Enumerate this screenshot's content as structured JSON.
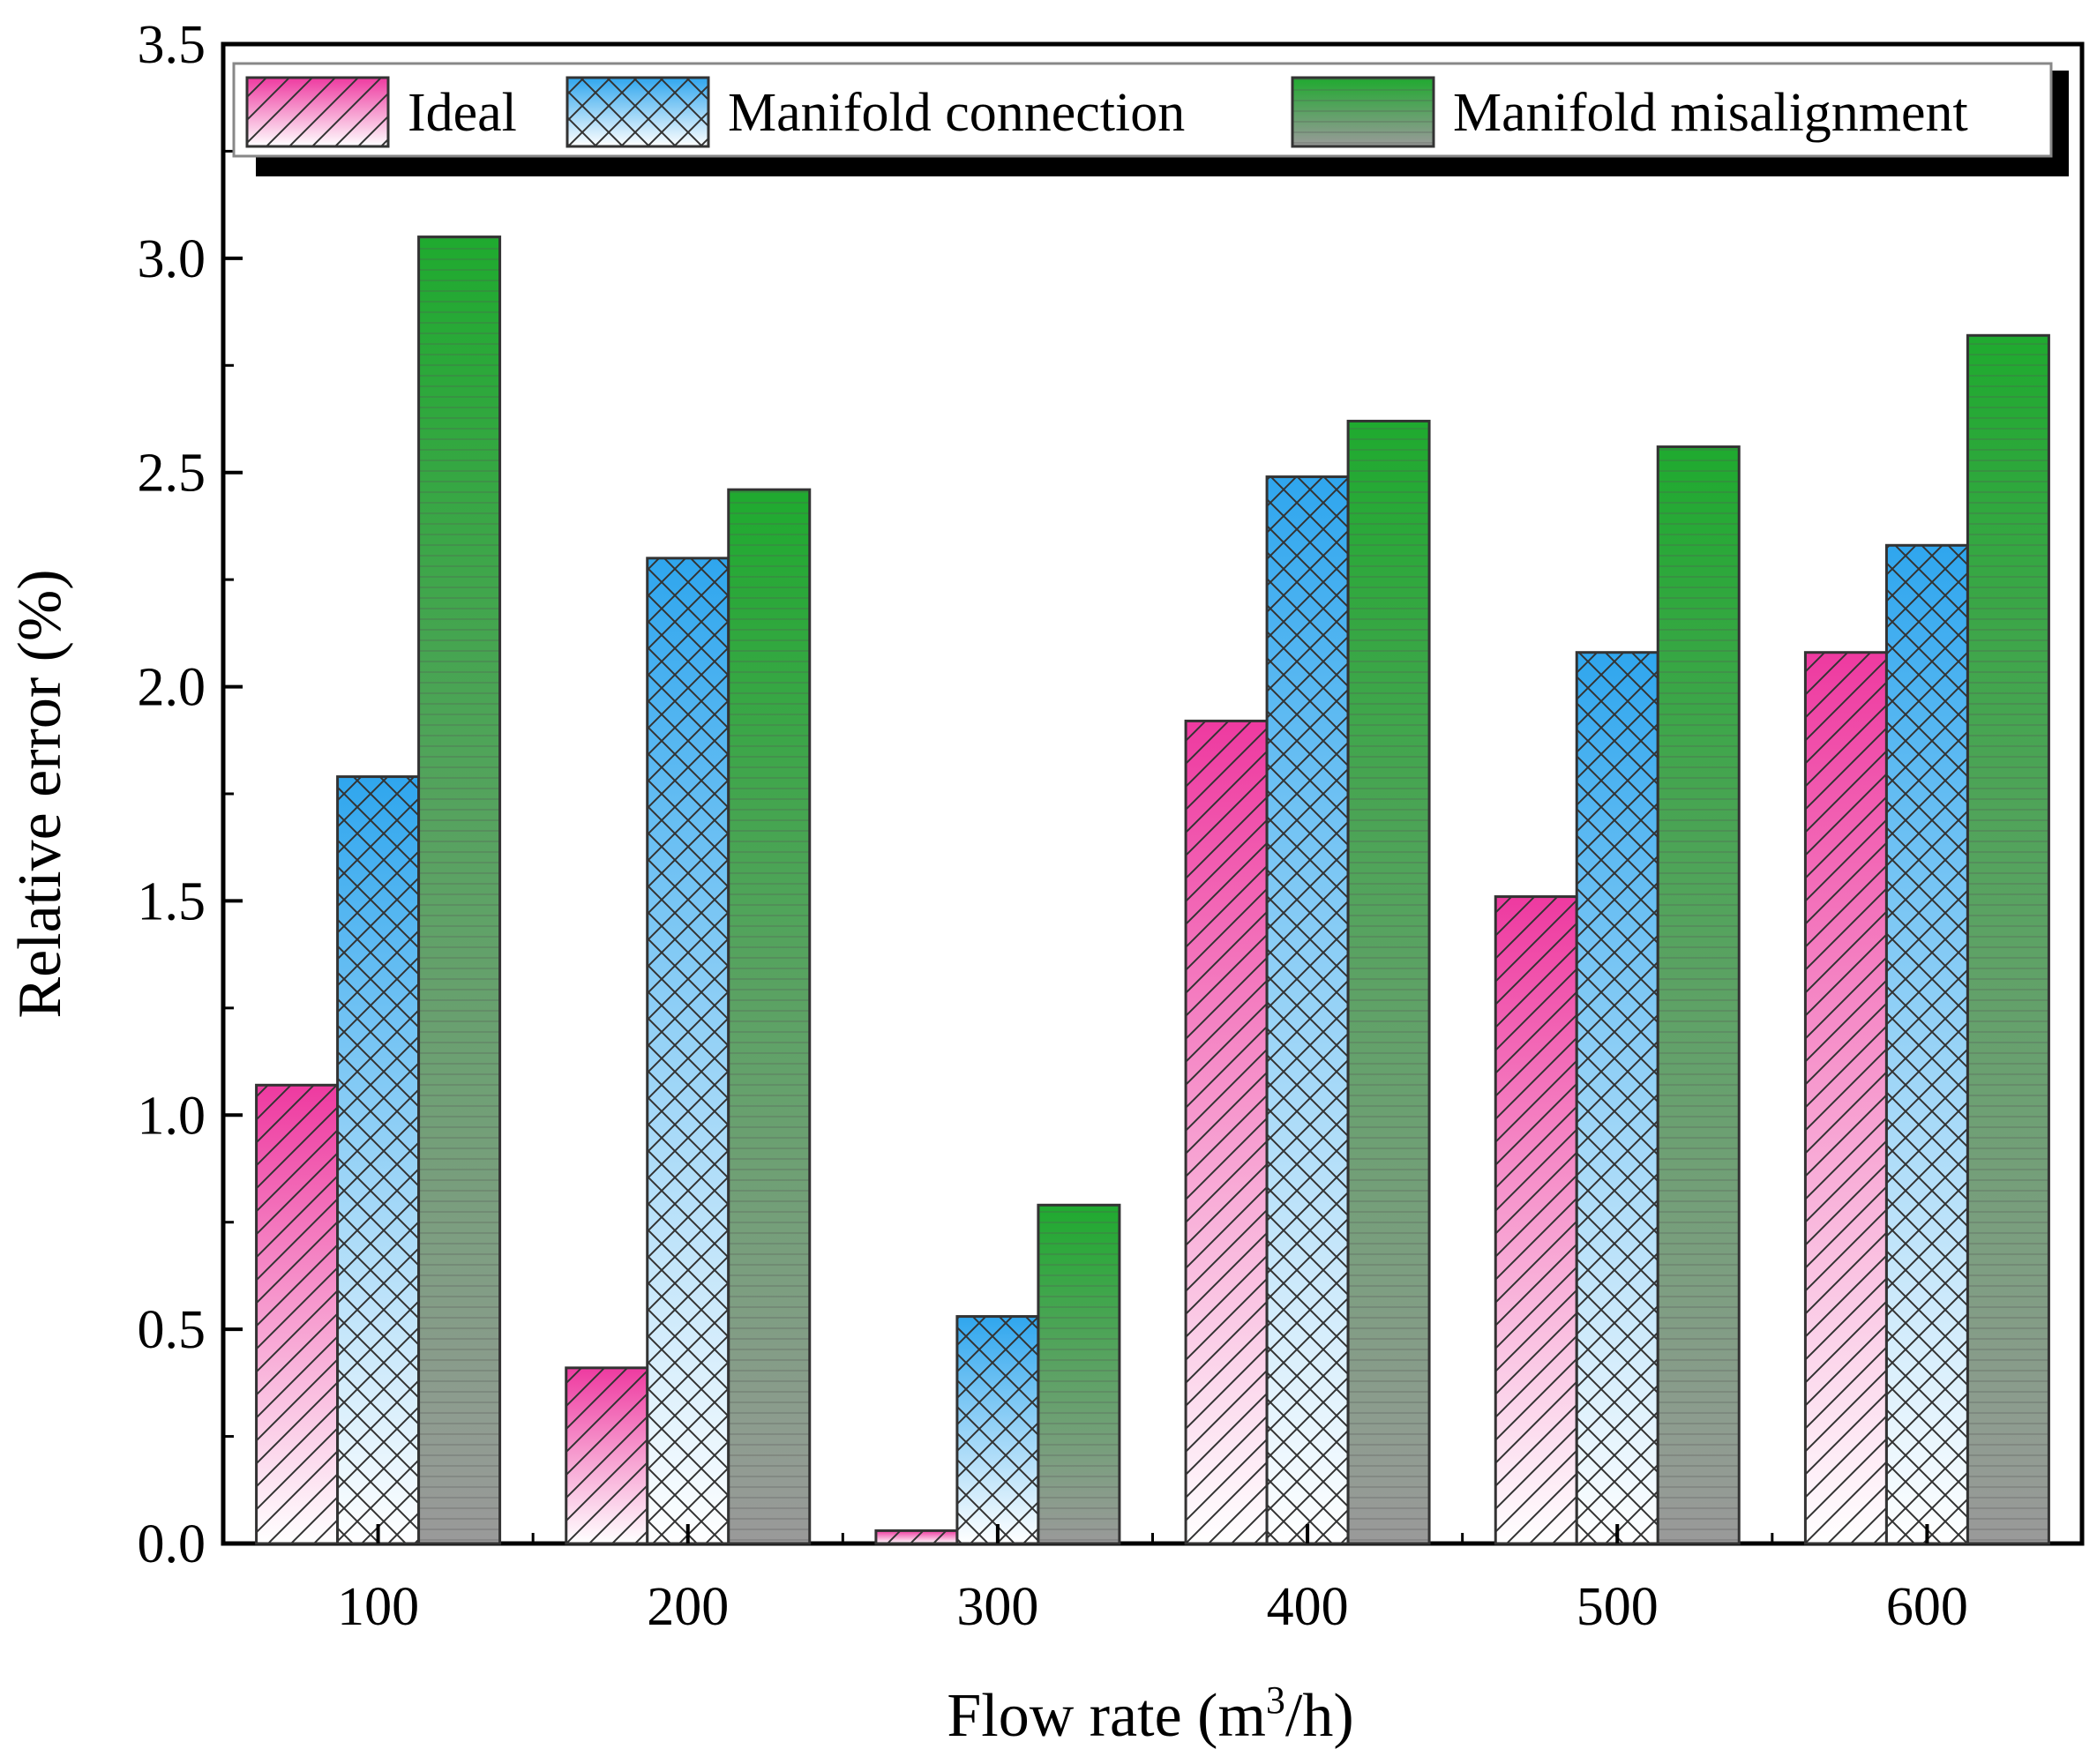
{
  "chart_data": {
    "type": "bar",
    "title": "",
    "xlabel": "Flow rate (m",
    "xlabel_sup": "3",
    "xlabel_suffix": "/h)",
    "ylabel": "Relative error (%)",
    "ylim": [
      0,
      3.5
    ],
    "yticks": [
      "0.0",
      "0.5",
      "1.0",
      "1.5",
      "2.0",
      "2.5",
      "3.0",
      "3.5"
    ],
    "categories": [
      "100",
      "200",
      "300",
      "400",
      "500",
      "600"
    ],
    "legend_position": "top",
    "series": [
      {
        "name": "Ideal",
        "values": [
          1.07,
          0.41,
          0.03,
          1.92,
          1.51,
          2.08
        ],
        "color": "#ee3aa0",
        "pattern": "diagonal-hatch"
      },
      {
        "name": "Manifold connection",
        "values": [
          1.79,
          2.3,
          0.53,
          2.49,
          2.08,
          2.33
        ],
        "color": "#2fa6ee",
        "pattern": "cross-hatch"
      },
      {
        "name": "Manifold misalignment",
        "values": [
          3.05,
          2.46,
          0.79,
          2.62,
          2.56,
          2.82
        ],
        "color": "#1faa2f",
        "pattern": "horizontal-lines"
      }
    ]
  }
}
